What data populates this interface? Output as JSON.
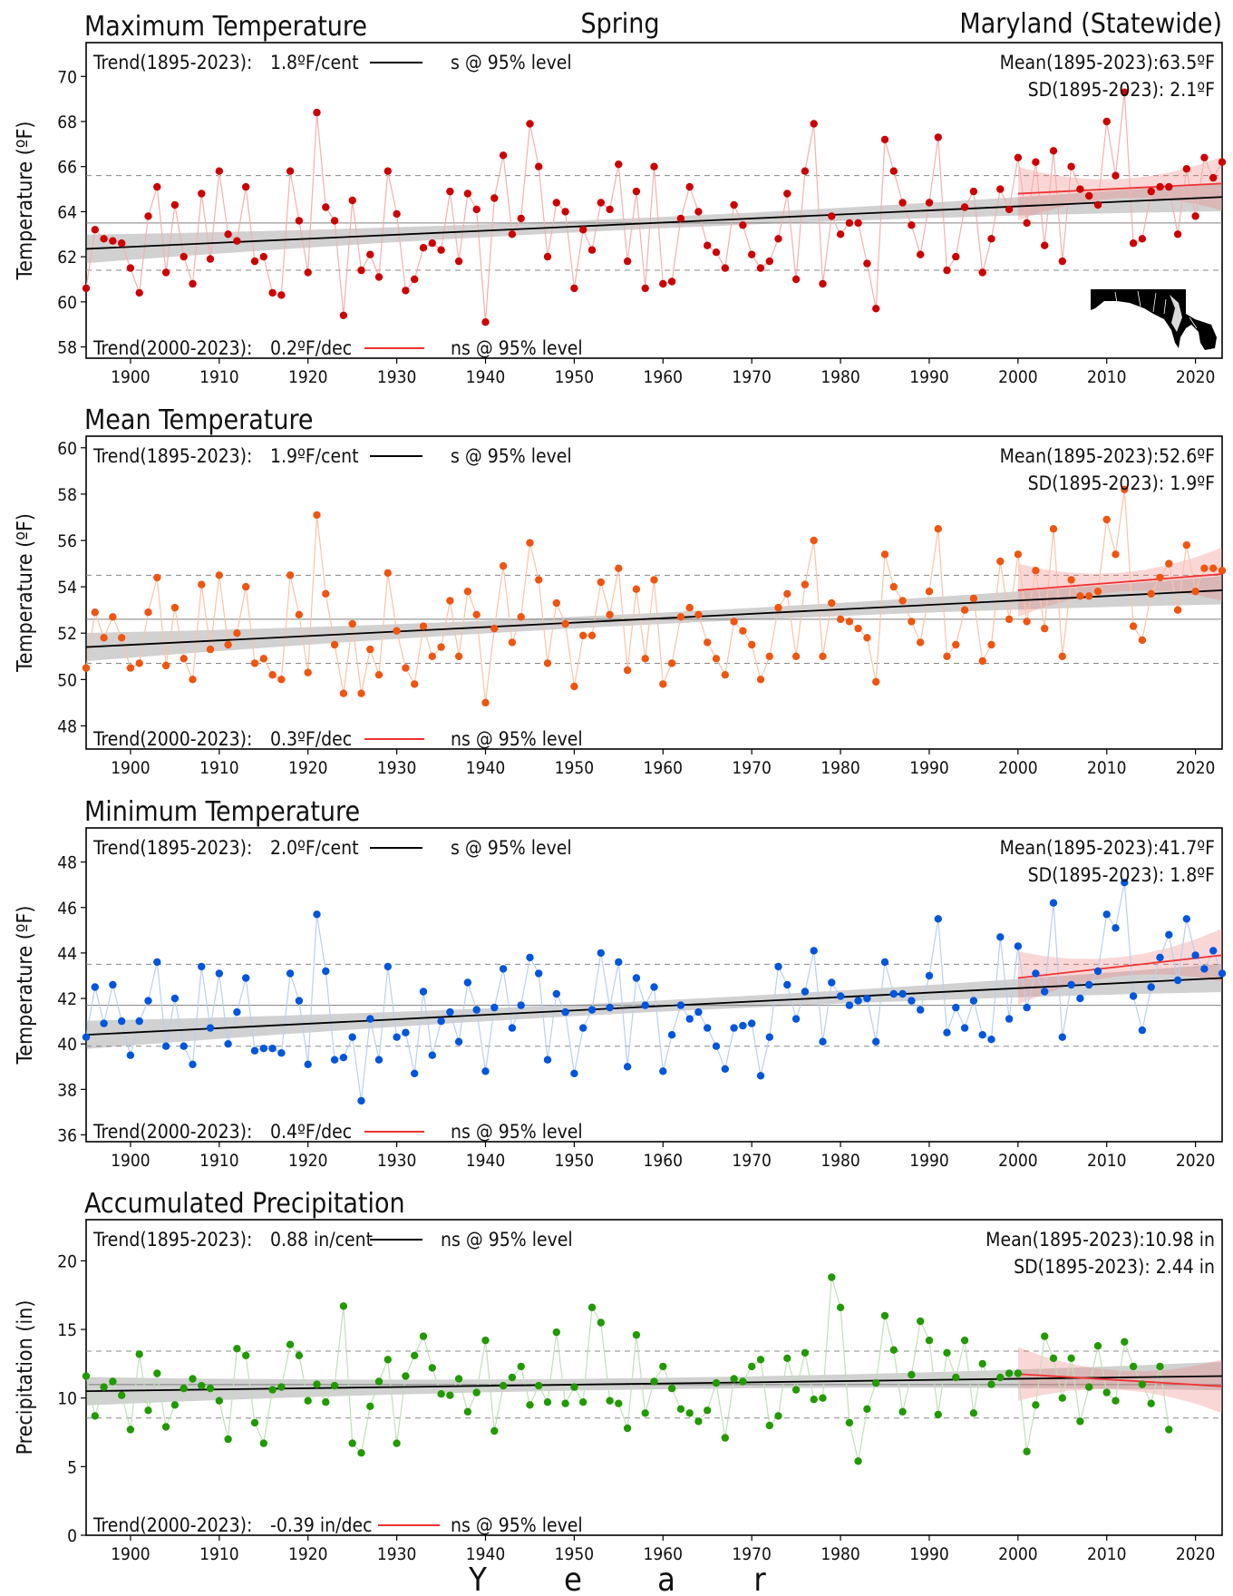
{
  "header": {
    "season": "Spring",
    "region": "Maryland (Statewide)"
  },
  "xaxis": {
    "label_letters": [
      "Y",
      "e",
      "a",
      "r"
    ],
    "range": [
      1895,
      2023
    ],
    "ticks": [
      "1900",
      "1910",
      "1920",
      "1930",
      "1940",
      "1950",
      "1960",
      "1970",
      "1980",
      "1990",
      "2000",
      "2010",
      "2020"
    ]
  },
  "map_icon": "maryland-map-icon",
  "chart_data": [
    {
      "type": "scatter",
      "title": "Maximum Temperature",
      "ylabel": "Temperature (ºF)",
      "ylim": [
        57.5,
        71.5
      ],
      "yticks": [
        "58",
        "60",
        "62",
        "64",
        "66",
        "68",
        "70"
      ],
      "color": "#cc0000",
      "line_color": "#f4b0b0",
      "mean": 63.5,
      "sd": 2.1,
      "trend_long": {
        "label": "Trend(1895-2023):",
        "value": "1.8ºF/cent",
        "sig": "s @ 95% level",
        "start": 62.35,
        "end": 64.65
      },
      "trend_recent": {
        "label": "Trend(2000-2023):",
        "value": "0.2ºF/dec",
        "sig": "ns @ 95% level",
        "start": 64.8,
        "end": 65.25
      },
      "mean_text": "Mean(1895-2023):63.5ºF",
      "sd_text": "SD(1895-2023): 2.1ºF",
      "series": [
        {
          "x_start": 1895,
          "values": [
            60.6,
            63.2,
            62.8,
            62.7,
            62.6,
            61.5,
            60.4,
            63.8,
            65.1,
            61.3,
            64.3,
            62.0,
            60.8,
            64.8,
            61.9,
            65.8,
            63.0,
            62.7,
            65.1,
            61.8,
            62.0,
            60.4,
            60.3,
            65.8,
            63.6,
            61.3,
            68.4,
            64.2,
            63.6,
            59.4,
            64.5,
            61.4,
            62.1,
            61.1,
            65.8,
            63.9,
            60.5,
            61.0,
            62.4,
            62.6,
            62.3,
            64.9,
            61.8,
            64.8,
            64.1,
            59.1,
            64.6,
            66.5,
            63.0,
            63.7,
            67.9,
            66.0,
            62.0,
            64.4,
            64.0,
            60.6,
            63.2,
            62.3,
            64.4,
            64.1,
            66.1,
            61.8,
            64.9,
            60.6,
            66.0,
            60.8,
            60.9,
            63.7,
            65.1,
            64.0,
            62.5,
            62.2,
            61.5,
            64.3,
            63.4,
            62.1,
            61.5,
            61.8,
            62.8,
            64.8,
            61.0,
            65.8,
            67.9,
            60.8,
            63.8,
            63.0,
            63.5,
            63.5,
            61.7,
            59.7,
            67.2,
            65.8,
            64.4,
            63.4,
            62.1,
            64.4,
            67.3,
            61.4,
            62.0,
            64.2,
            64.9,
            61.3,
            62.8,
            65.0,
            64.1,
            66.4,
            63.5,
            66.2,
            62.5,
            66.7,
            61.8,
            66.0,
            65.0,
            64.7,
            64.3,
            68.0,
            65.6,
            69.3,
            62.6,
            62.8,
            64.9,
            65.1,
            65.1,
            63.0,
            65.9,
            63.8,
            66.4,
            65.5,
            66.2
          ]
        }
      ]
    },
    {
      "type": "scatter",
      "title": "Mean Temperature",
      "ylabel": "Temperature (ºF)",
      "ylim": [
        47,
        60.5
      ],
      "yticks": [
        "48",
        "50",
        "52",
        "54",
        "56",
        "58",
        "60"
      ],
      "color": "#ee5511",
      "line_color": "#f8c4a8",
      "mean": 52.6,
      "sd": 1.9,
      "trend_long": {
        "label": "Trend(1895-2023):",
        "value": "1.9ºF/cent",
        "sig": "s @ 95% level",
        "start": 51.4,
        "end": 53.85
      },
      "trend_recent": {
        "label": "Trend(2000-2023):",
        "value": "0.3ºF/dec",
        "sig": "ns @ 95% level",
        "start": 53.85,
        "end": 54.55
      },
      "mean_text": "Mean(1895-2023):52.6ºF",
      "sd_text": "SD(1895-2023): 1.9ºF",
      "series": [
        {
          "x_start": 1895,
          "values": [
            50.5,
            52.9,
            51.8,
            52.7,
            51.8,
            50.5,
            50.7,
            52.9,
            54.4,
            50.6,
            53.1,
            50.9,
            50.0,
            54.1,
            51.3,
            54.5,
            51.5,
            52.0,
            54.0,
            50.7,
            50.9,
            50.2,
            50.0,
            54.5,
            52.8,
            50.3,
            57.1,
            53.7,
            51.5,
            49.4,
            52.4,
            49.4,
            51.3,
            50.2,
            54.6,
            52.1,
            50.5,
            49.8,
            52.3,
            51.0,
            51.4,
            53.4,
            51.0,
            53.8,
            52.8,
            49.0,
            52.2,
            54.9,
            51.6,
            52.7,
            55.9,
            54.3,
            50.7,
            53.3,
            52.4,
            49.7,
            51.9,
            51.9,
            54.2,
            52.8,
            54.8,
            50.4,
            53.9,
            50.9,
            54.3,
            49.8,
            50.7,
            52.7,
            53.1,
            52.8,
            51.6,
            50.9,
            50.2,
            52.5,
            52.1,
            51.5,
            50.0,
            51.0,
            53.1,
            53.7,
            51.0,
            54.1,
            56.0,
            51.0,
            53.3,
            52.6,
            52.5,
            52.2,
            51.8,
            49.9,
            55.4,
            54.0,
            53.4,
            52.5,
            51.6,
            53.8,
            56.5,
            51.0,
            51.5,
            53.0,
            53.5,
            50.8,
            51.5,
            55.1,
            52.6,
            55.4,
            52.5,
            54.7,
            52.2,
            56.5,
            51.0,
            54.3,
            53.6,
            53.6,
            53.8,
            56.9,
            55.4,
            58.2,
            52.3,
            51.7,
            53.7,
            54.4,
            55.0,
            53.0,
            55.8,
            53.8,
            54.8,
            54.8,
            54.7
          ]
        }
      ]
    },
    {
      "type": "scatter",
      "title": "Minimum Temperature",
      "ylabel": "Temperature (ºF)",
      "ylim": [
        35.7,
        49.5
      ],
      "yticks": [
        "36",
        "38",
        "40",
        "42",
        "44",
        "46",
        "48"
      ],
      "color": "#0055dd",
      "line_color": "#b8d0f0",
      "mean": 41.7,
      "sd": 1.8,
      "trend_long": {
        "label": "Trend(1895-2023):",
        "value": "2.0ºF/cent",
        "sig": "s @ 95% level",
        "start": 40.4,
        "end": 42.9
      },
      "trend_recent": {
        "label": "Trend(2000-2023):",
        "value": "0.4ºF/dec",
        "sig": "ns @ 95% level",
        "start": 42.9,
        "end": 43.9
      },
      "mean_text": "Mean(1895-2023):41.7ºF",
      "sd_text": "SD(1895-2023): 1.8ºF",
      "series": [
        {
          "x_start": 1895,
          "values": [
            40.3,
            42.5,
            40.9,
            42.6,
            41.0,
            39.5,
            41.0,
            41.9,
            43.6,
            39.9,
            42.0,
            39.9,
            39.1,
            43.4,
            40.7,
            43.1,
            40.0,
            41.4,
            42.9,
            39.7,
            39.8,
            39.8,
            39.6,
            43.1,
            41.9,
            39.1,
            45.7,
            43.2,
            39.3,
            39.4,
            40.3,
            37.5,
            41.1,
            39.3,
            43.4,
            40.3,
            40.5,
            38.7,
            42.3,
            39.5,
            41.0,
            41.4,
            40.1,
            42.7,
            41.5,
            38.8,
            41.6,
            43.3,
            40.7,
            41.7,
            43.8,
            43.1,
            39.3,
            42.2,
            41.4,
            38.7,
            40.7,
            41.5,
            44.0,
            41.6,
            43.6,
            39.0,
            42.9,
            41.7,
            42.5,
            38.8,
            40.4,
            41.7,
            41.1,
            41.4,
            40.7,
            39.9,
            38.9,
            40.7,
            40.8,
            40.9,
            38.6,
            40.3,
            43.4,
            42.6,
            41.1,
            42.3,
            44.1,
            40.1,
            42.7,
            42.1,
            41.7,
            41.9,
            42.0,
            40.1,
            43.6,
            42.2,
            42.2,
            41.9,
            41.5,
            43.0,
            45.5,
            40.5,
            41.6,
            40.7,
            41.9,
            40.4,
            40.2,
            44.7,
            41.1,
            44.3,
            41.6,
            43.1,
            42.3,
            46.2,
            40.3,
            42.6,
            42.0,
            42.6,
            43.2,
            45.7,
            45.1,
            47.1,
            42.1,
            40.6,
            42.5,
            43.8,
            44.8,
            42.8,
            45.5,
            43.9,
            43.3,
            44.1,
            43.1
          ]
        }
      ]
    },
    {
      "type": "scatter",
      "title": "Accumulated Precipitation",
      "ylabel": "Precipitation (in)",
      "ylim": [
        0,
        23
      ],
      "yticks": [
        "0",
        "5",
        "10",
        "15",
        "20"
      ],
      "color": "#229900",
      "line_color": "#c0e0b8",
      "mean": 10.98,
      "sd": 2.44,
      "trend_long": {
        "label": "Trend(1895-2023):",
        "value": "0.88 in/cent",
        "sig": "ns @ 95% level",
        "start": 10.5,
        "end": 11.6
      },
      "trend_recent": {
        "label": "Trend(2000-2023):",
        "value": "-0.39 in/dec",
        "sig": "ns @ 95% level",
        "start": 11.75,
        "end": 10.85
      },
      "mean_text": "Mean(1895-2023):10.98 in",
      "sd_text": "SD(1895-2023): 2.44 in",
      "series": [
        {
          "x_start": 1895,
          "values": [
            11.6,
            8.7,
            10.8,
            11.2,
            10.2,
            7.7,
            13.2,
            9.1,
            11.8,
            7.9,
            9.5,
            10.7,
            11.4,
            10.9,
            10.7,
            9.8,
            7.0,
            13.6,
            13.1,
            8.2,
            6.7,
            10.6,
            10.8,
            13.9,
            13.1,
            9.8,
            11.0,
            9.7,
            10.9,
            16.7,
            6.7,
            6.0,
            9.4,
            11.2,
            12.8,
            6.7,
            11.6,
            13.1,
            14.5,
            12.2,
            10.3,
            10.2,
            11.4,
            9.0,
            10.4,
            14.2,
            7.6,
            10.9,
            11.5,
            12.3,
            9.5,
            10.9,
            9.7,
            14.8,
            9.6,
            10.8,
            9.7,
            16.6,
            15.5,
            9.8,
            9.6,
            7.8,
            14.6,
            8.9,
            11.2,
            12.3,
            10.7,
            9.2,
            8.9,
            8.3,
            9.1,
            11.1,
            7.1,
            11.4,
            11.2,
            12.3,
            12.8,
            8.0,
            8.7,
            12.9,
            10.6,
            13.3,
            9.9,
            10.0,
            18.8,
            16.6,
            8.2,
            5.4,
            9.2,
            11.1,
            16.0,
            13.5,
            9.0,
            11.7,
            15.6,
            14.2,
            8.8,
            13.3,
            11.5,
            14.2,
            8.9,
            12.5,
            11.0,
            11.5,
            11.8,
            11.8,
            6.1,
            9.5,
            14.5,
            12.9,
            10.0,
            12.9,
            8.3,
            10.8,
            13.8,
            10.4,
            9.8,
            14.1,
            12.3,
            11.0,
            9.6,
            12.3,
            7.7
          ]
        }
      ]
    }
  ]
}
